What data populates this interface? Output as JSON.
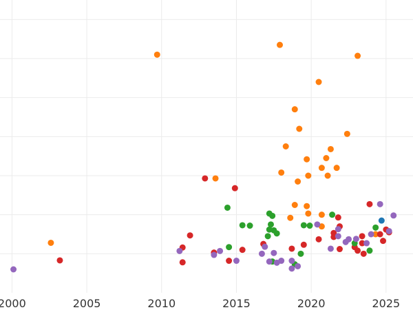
{
  "chart_data": {
    "type": "scatter",
    "title": "",
    "xlabel": "",
    "ylabel": "",
    "xlim": [
      1999.2,
      2026.8
    ],
    "ylim": [
      0,
      7.5
    ],
    "x_ticks": [
      "2000",
      "2005",
      "2010",
      "2015",
      "2020",
      "2025"
    ],
    "y_grid": [
      1,
      2,
      3,
      4,
      5,
      6,
      7
    ],
    "grid": true,
    "legend": "none",
    "series": [
      {
        "color": "#ff7f0e",
        "points": [
          {
            "x": 2002.6,
            "y": 1.28
          },
          {
            "x": 2009.7,
            "y": 6.1
          },
          {
            "x": 2013.6,
            "y": 2.93
          },
          {
            "x": 2017.9,
            "y": 6.35
          },
          {
            "x": 2018.0,
            "y": 3.08
          },
          {
            "x": 2018.3,
            "y": 3.75
          },
          {
            "x": 2018.6,
            "y": 1.92
          },
          {
            "x": 2018.9,
            "y": 4.7
          },
          {
            "x": 2018.9,
            "y": 2.25
          },
          {
            "x": 2019.1,
            "y": 2.85
          },
          {
            "x": 2019.2,
            "y": 4.2
          },
          {
            "x": 2019.7,
            "y": 3.42
          },
          {
            "x": 2019.7,
            "y": 2.22
          },
          {
            "x": 2019.8,
            "y": 2.03
          },
          {
            "x": 2019.8,
            "y": 3.0
          },
          {
            "x": 2020.5,
            "y": 5.4
          },
          {
            "x": 2020.7,
            "y": 3.2
          },
          {
            "x": 2020.7,
            "y": 2.0
          },
          {
            "x": 2020.7,
            "y": 1.7
          },
          {
            "x": 2021.0,
            "y": 3.45
          },
          {
            "x": 2021.1,
            "y": 3.0
          },
          {
            "x": 2021.3,
            "y": 3.68
          },
          {
            "x": 2021.7,
            "y": 3.2
          },
          {
            "x": 2022.4,
            "y": 4.07
          },
          {
            "x": 2023.1,
            "y": 6.07
          },
          {
            "x": 2024.3,
            "y": 1.5
          }
        ]
      },
      {
        "color": "#d62728",
        "points": [
          {
            "x": 2003.2,
            "y": 0.83
          },
          {
            "x": 2011.4,
            "y": 1.16
          },
          {
            "x": 2011.4,
            "y": 0.78
          },
          {
            "x": 2011.9,
            "y": 1.47
          },
          {
            "x": 2012.9,
            "y": 2.93
          },
          {
            "x": 2013.5,
            "y": 1.03
          },
          {
            "x": 2014.5,
            "y": 0.82
          },
          {
            "x": 2014.9,
            "y": 2.68
          },
          {
            "x": 2015.4,
            "y": 1.1
          },
          {
            "x": 2016.8,
            "y": 1.25
          },
          {
            "x": 2018.7,
            "y": 1.13
          },
          {
            "x": 2019.5,
            "y": 1.23
          },
          {
            "x": 2020.5,
            "y": 1.37
          },
          {
            "x": 2021.5,
            "y": 1.43
          },
          {
            "x": 2021.5,
            "y": 1.53
          },
          {
            "x": 2021.8,
            "y": 1.93
          },
          {
            "x": 2021.9,
            "y": 1.7
          },
          {
            "x": 2021.9,
            "y": 1.12
          },
          {
            "x": 2022.9,
            "y": 1.17
          },
          {
            "x": 2023.1,
            "y": 1.08
          },
          {
            "x": 2023.4,
            "y": 1.45
          },
          {
            "x": 2023.4,
            "y": 1.27
          },
          {
            "x": 2023.5,
            "y": 1.0
          },
          {
            "x": 2023.9,
            "y": 2.27
          },
          {
            "x": 2024.6,
            "y": 1.5
          },
          {
            "x": 2024.8,
            "y": 1.33
          },
          {
            "x": 2025.0,
            "y": 1.62
          },
          {
            "x": 2025.2,
            "y": 1.55
          }
        ]
      },
      {
        "color": "#2ca02c",
        "points": [
          {
            "x": 2014.4,
            "y": 2.18
          },
          {
            "x": 2014.5,
            "y": 1.17
          },
          {
            "x": 2015.4,
            "y": 1.73
          },
          {
            "x": 2015.9,
            "y": 1.72
          },
          {
            "x": 2017.1,
            "y": 1.45
          },
          {
            "x": 2017.2,
            "y": 2.03
          },
          {
            "x": 2017.2,
            "y": 1.62
          },
          {
            "x": 2017.3,
            "y": 1.75
          },
          {
            "x": 2017.4,
            "y": 1.97
          },
          {
            "x": 2017.4,
            "y": 0.8
          },
          {
            "x": 2017.5,
            "y": 1.6
          },
          {
            "x": 2017.7,
            "y": 1.52
          },
          {
            "x": 2018.9,
            "y": 0.73
          },
          {
            "x": 2019.3,
            "y": 1.0
          },
          {
            "x": 2019.5,
            "y": 1.73
          },
          {
            "x": 2019.9,
            "y": 1.72
          },
          {
            "x": 2021.4,
            "y": 2.0
          },
          {
            "x": 2022.9,
            "y": 1.27
          },
          {
            "x": 2023.9,
            "y": 1.08
          },
          {
            "x": 2024.3,
            "y": 1.67
          }
        ]
      },
      {
        "color": "#9467bd",
        "points": [
          {
            "x": 2000.1,
            "y": 0.6
          },
          {
            "x": 2011.2,
            "y": 1.07
          },
          {
            "x": 2013.5,
            "y": 0.97
          },
          {
            "x": 2013.9,
            "y": 1.07
          },
          {
            "x": 2015.0,
            "y": 0.82
          },
          {
            "x": 2016.7,
            "y": 1.0
          },
          {
            "x": 2016.9,
            "y": 1.18
          },
          {
            "x": 2017.2,
            "y": 0.8
          },
          {
            "x": 2017.5,
            "y": 1.02
          },
          {
            "x": 2017.7,
            "y": 0.77
          },
          {
            "x": 2018.0,
            "y": 0.82
          },
          {
            "x": 2018.7,
            "y": 0.62
          },
          {
            "x": 2018.7,
            "y": 0.82
          },
          {
            "x": 2019.1,
            "y": 0.68
          },
          {
            "x": 2020.4,
            "y": 1.75
          },
          {
            "x": 2021.3,
            "y": 1.13
          },
          {
            "x": 2021.8,
            "y": 1.45
          },
          {
            "x": 2021.8,
            "y": 1.63
          },
          {
            "x": 2022.3,
            "y": 1.3
          },
          {
            "x": 2022.5,
            "y": 1.37
          },
          {
            "x": 2023.0,
            "y": 1.38
          },
          {
            "x": 2023.7,
            "y": 1.27
          },
          {
            "x": 2024.0,
            "y": 1.5
          },
          {
            "x": 2024.6,
            "y": 2.27
          },
          {
            "x": 2025.2,
            "y": 1.58
          },
          {
            "x": 2025.5,
            "y": 1.98
          }
        ]
      },
      {
        "color": "#1f77b4",
        "points": [
          {
            "x": 2024.7,
            "y": 1.85
          }
        ]
      }
    ]
  }
}
